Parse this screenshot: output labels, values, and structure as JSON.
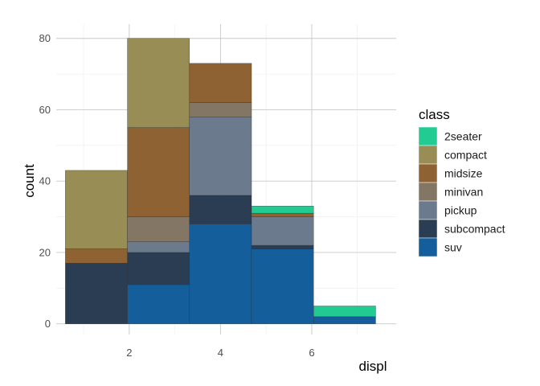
{
  "chart_data": {
    "type": "bar",
    "stacked": true,
    "xlabel": "displ",
    "ylabel": "count",
    "x_ticks": [
      2,
      4,
      6
    ],
    "y_ticks": [
      0,
      20,
      40,
      60,
      80
    ],
    "xlim": [
      0.4,
      7.85
    ],
    "ylim": [
      -3,
      84
    ],
    "grid": true,
    "legend_position": "right",
    "legend_title": "class",
    "bin_edges": [
      0.6,
      1.96,
      3.32,
      4.68,
      6.04,
      7.4
    ],
    "series": [
      {
        "name": "2seater",
        "color": "#21CB92",
        "values": [
          0,
          0,
          0,
          2,
          3
        ]
      },
      {
        "name": "compact",
        "color": "#988D55",
        "values": [
          22,
          25,
          0,
          0,
          0
        ]
      },
      {
        "name": "midsize",
        "color": "#8E6232",
        "values": [
          4,
          25,
          11,
          1,
          0
        ]
      },
      {
        "name": "minivan",
        "color": "#837664",
        "values": [
          0,
          7,
          4,
          0,
          0
        ]
      },
      {
        "name": "pickup",
        "color": "#6B7A8C",
        "values": [
          0,
          3,
          22,
          8,
          0
        ]
      },
      {
        "name": "subcompact",
        "color": "#2A3D52",
        "values": [
          17,
          9,
          8,
          1,
          0
        ]
      },
      {
        "name": "suv",
        "color": "#155E9C",
        "values": [
          0,
          11,
          28,
          21,
          2
        ]
      }
    ]
  }
}
